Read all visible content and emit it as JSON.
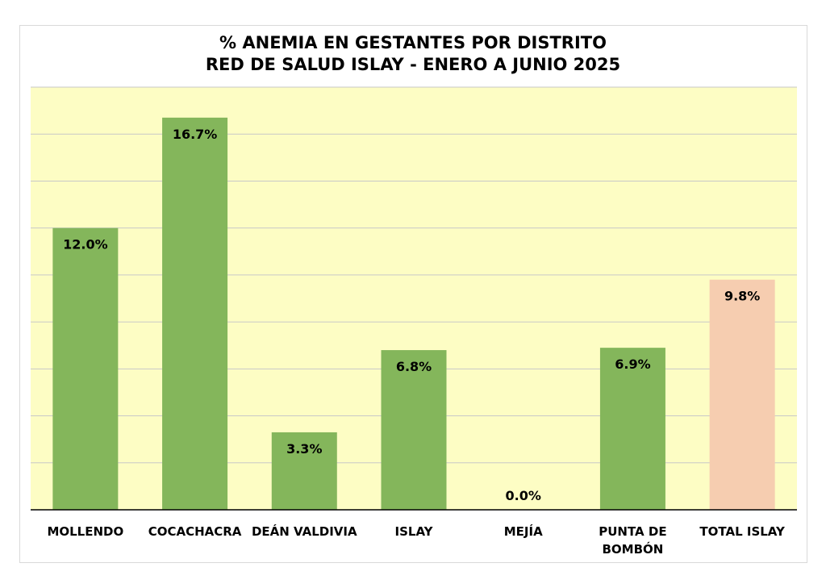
{
  "chart_data": {
    "type": "bar",
    "title": [
      "% ANEMIA EN GESTANTES POR DISTRITO",
      "RED DE SALUD ISLAY - ENERO A JUNIO 2025"
    ],
    "categories": [
      [
        "MOLLENDO"
      ],
      [
        "COCACHACRA"
      ],
      [
        "DEÁN VALDIVIA"
      ],
      [
        "ISLAY"
      ],
      [
        "MEJÍA"
      ],
      [
        "PUNTA DE",
        "BOMBÓN"
      ],
      [
        "TOTAL ISLAY"
      ]
    ],
    "values": [
      12.0,
      16.7,
      3.3,
      6.8,
      0.0,
      6.9,
      9.8
    ],
    "data_labels": [
      "12.0%",
      "16.7%",
      "3.3%",
      "6.8%",
      "0.0%",
      "6.9%",
      "9.8%"
    ],
    "ylim": [
      0,
      18
    ],
    "grid": true,
    "legend": "none",
    "colors": {
      "bar": "#84b65b",
      "total_bar": "#f6cdb0",
      "plot_background": "#fdfdc4",
      "gridline": "#c8c8c8",
      "axis": "#000000"
    }
  }
}
